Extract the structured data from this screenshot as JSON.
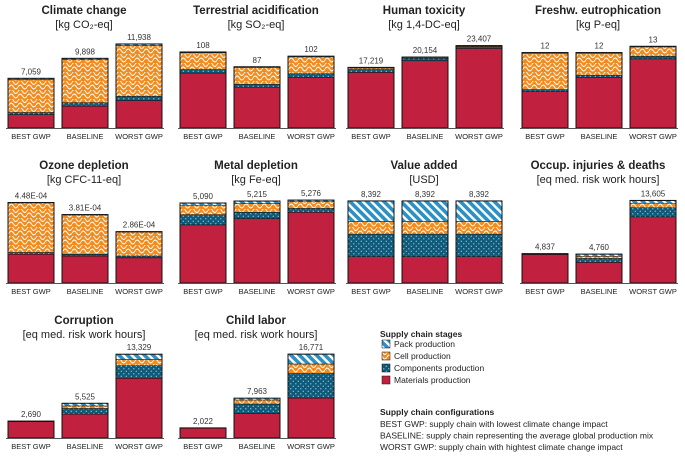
{
  "colors": {
    "materials": "#c1203f",
    "components": "#0f5a78",
    "cell": "#f28c1e",
    "pack": "#2d90c4",
    "axis": "#555555"
  },
  "chart_data": [
    {
      "type": "bar",
      "stacked": true,
      "title": "Climate change",
      "unit": "[kg CO₂-eq]",
      "categories": [
        "BEST GWP",
        "BASELINE",
        "WORST GWP"
      ],
      "totals_labels": [
        "7,059",
        "9,898",
        "11,938"
      ],
      "ylim": [
        0,
        12500
      ],
      "series": [
        {
          "name": "Materials  production",
          "values": [
            1900,
            3100,
            3900
          ]
        },
        {
          "name": "Components production",
          "values": [
            300,
            500,
            600
          ]
        },
        {
          "name": "Cell production",
          "values": [
            4700,
            6100,
            7200
          ]
        },
        {
          "name": "Pack production",
          "values": [
            159,
            198,
            238
          ]
        }
      ]
    },
    {
      "type": "bar",
      "stacked": true,
      "title": "Terrestrial acidification",
      "unit": "[kg SO₂-eq]",
      "categories": [
        "BEST GWP",
        "BASELINE",
        "WORST GWP"
      ],
      "totals_labels": [
        "108",
        "87",
        "102"
      ],
      "ylim": [
        0,
        125
      ],
      "series": [
        {
          "name": "Materials  production",
          "values": [
            78,
            58,
            72
          ]
        },
        {
          "name": "Components production",
          "values": [
            5,
            4,
            5
          ]
        },
        {
          "name": "Cell production",
          "values": [
            24,
            24,
            24
          ]
        },
        {
          "name": "Pack production",
          "values": [
            1,
            1,
            1
          ]
        }
      ]
    },
    {
      "type": "bar",
      "stacked": true,
      "title": "Human toxicity",
      "unit": "[kg 1,4-DC-eq]",
      "categories": [
        "BEST GWP",
        "BASELINE",
        "WORST GWP"
      ],
      "totals_labels": [
        "17,219",
        "20,154",
        "23,407"
      ],
      "ylim": [
        0,
        25000
      ],
      "series": [
        {
          "name": "Materials  production",
          "values": [
            15800,
            19100,
            22600
          ]
        },
        {
          "name": "Components production",
          "values": [
            800,
            700,
            500
          ]
        },
        {
          "name": "Cell production",
          "values": [
            450,
            250,
            220
          ]
        },
        {
          "name": "Pack production",
          "values": [
            169,
            104,
            87
          ]
        }
      ]
    },
    {
      "type": "bar",
      "stacked": true,
      "title": "Freshw. eutrophication",
      "unit": "[kg P-eq]",
      "categories": [
        "BEST GWP",
        "BASELINE",
        "WORST GWP"
      ],
      "totals_labels": [
        "12",
        "12",
        "13"
      ],
      "ylim": [
        0,
        14
      ],
      "series": [
        {
          "name": "Materials  production",
          "values": [
            5.8,
            8.0,
            11.0
          ]
        },
        {
          "name": "Components production",
          "values": [
            0.3,
            0.4,
            0.4
          ]
        },
        {
          "name": "Cell production",
          "values": [
            5.8,
            3.5,
            1.5
          ]
        },
        {
          "name": "Pack production",
          "values": [
            0.1,
            0.1,
            0.1
          ]
        }
      ]
    },
    {
      "type": "bar",
      "stacked": true,
      "title": "Ozone depletion",
      "unit": "[kg CFC-11-eq]",
      "categories": [
        "BEST GWP",
        "BASELINE",
        "WORST GWP"
      ],
      "totals_labels": [
        "4.48E-04",
        "3.81E-04",
        "2.86E-04"
      ],
      "ylim": [
        0,
        0.00049
      ],
      "series": [
        {
          "name": "Materials  production",
          "values": [
            0.00016,
            0.00015,
            0.00014
          ]
        },
        {
          "name": "Components production",
          "values": [
            1e-05,
            1e-05,
            1e-05
          ]
        },
        {
          "name": "Cell production",
          "values": [
            0.000276,
            0.000219,
            0.000134
          ]
        },
        {
          "name": "Pack production",
          "values": [
            2e-06,
            2e-06,
            2e-06
          ]
        }
      ]
    },
    {
      "type": "bar",
      "stacked": true,
      "title": "Metal depletion",
      "unit": "[kg Fe-eq]",
      "categories": [
        "BEST GWP",
        "BASELINE",
        "WORST GWP"
      ],
      "totals_labels": [
        "5,090",
        "5,215",
        "5,276"
      ],
      "ylim": [
        0,
        5600
      ],
      "series": [
        {
          "name": "Materials  production",
          "values": [
            3700,
            4100,
            4500
          ]
        },
        {
          "name": "Components production",
          "values": [
            650,
            400,
            250
          ]
        },
        {
          "name": "Cell production",
          "values": [
            600,
            550,
            420
          ]
        },
        {
          "name": "Pack production",
          "values": [
            140,
            165,
            106
          ]
        }
      ]
    },
    {
      "type": "bar",
      "stacked": true,
      "title": "Value added",
      "unit": "[USD]",
      "categories": [
        "BEST GWP",
        "BASELINE",
        "WORST GWP"
      ],
      "totals_labels": [
        "8,392",
        "8,392",
        "8,392"
      ],
      "ylim": [
        0,
        9000
      ],
      "series": [
        {
          "name": "Materials  production",
          "values": [
            2700,
            2700,
            2700
          ]
        },
        {
          "name": "Components production",
          "values": [
            2300,
            2300,
            2300
          ]
        },
        {
          "name": "Cell production",
          "values": [
            1300,
            1300,
            1300
          ]
        },
        {
          "name": "Pack production",
          "values": [
            2092,
            2092,
            2092
          ]
        }
      ]
    },
    {
      "type": "bar",
      "stacked": true,
      "title": "Occup. injuries & deaths",
      "unit": "[eq med. risk work hours]",
      "categories": [
        "BEST GWP",
        "BASELINE",
        "WORST GWP"
      ],
      "totals_labels": [
        "4,837",
        "4,760",
        "13,605"
      ],
      "ylim": [
        0,
        14500
      ],
      "series": [
        {
          "name": "Materials  production",
          "values": [
            4700,
            3400,
            10900
          ]
        },
        {
          "name": "Components production",
          "values": [
            60,
            650,
            1500
          ]
        },
        {
          "name": "Cell production",
          "values": [
            50,
            350,
            750
          ]
        },
        {
          "name": "Pack production",
          "values": [
            27,
            360,
            455
          ]
        }
      ]
    },
    {
      "type": "bar",
      "stacked": true,
      "title": "Corruption",
      "unit": "[eq med. risk work hours]",
      "categories": [
        "BEST GWP",
        "BASELINE",
        "WORST GWP"
      ],
      "totals_labels": [
        "2,690",
        "5,525",
        "13,329"
      ],
      "ylim": [
        0,
        14000
      ],
      "series": [
        {
          "name": "Materials  production",
          "values": [
            2600,
            3800,
            9500
          ]
        },
        {
          "name": "Components production",
          "values": [
            50,
            900,
            2000
          ]
        },
        {
          "name": "Cell production",
          "values": [
            20,
            400,
            1000
          ]
        },
        {
          "name": "Pack production",
          "values": [
            20,
            425,
            829
          ]
        }
      ]
    },
    {
      "type": "bar",
      "stacked": true,
      "title": "Child labor",
      "unit": "[eq med. risk work hours]",
      "categories": [
        "BEST GWP",
        "BASELINE",
        "WORST GWP"
      ],
      "totals_labels": [
        "2,022",
        "7,963",
        "16,771"
      ],
      "ylim": [
        0,
        17600
      ],
      "series": [
        {
          "name": "Materials  production",
          "values": [
            1950,
            4900,
            8000
          ]
        },
        {
          "name": "Components production",
          "values": [
            40,
            1900,
            4900
          ]
        },
        {
          "name": "Cell production",
          "values": [
            20,
            800,
            1900
          ]
        },
        {
          "name": "Pack production",
          "values": [
            12,
            363,
            1971
          ]
        }
      ]
    }
  ],
  "legend": {
    "stages_title": "Supply chain stages",
    "stages": [
      "Pack production",
      "Cell production",
      "Components production",
      "Materials  production"
    ],
    "configs_title": "Supply chain configurations",
    "configs": [
      "BEST GWP: supply chain with lowest climate change impact",
      "BASELINE: supply chain representing the average global production mix",
      "WORST GWP: supply chain with hightest climate change impact"
    ]
  }
}
